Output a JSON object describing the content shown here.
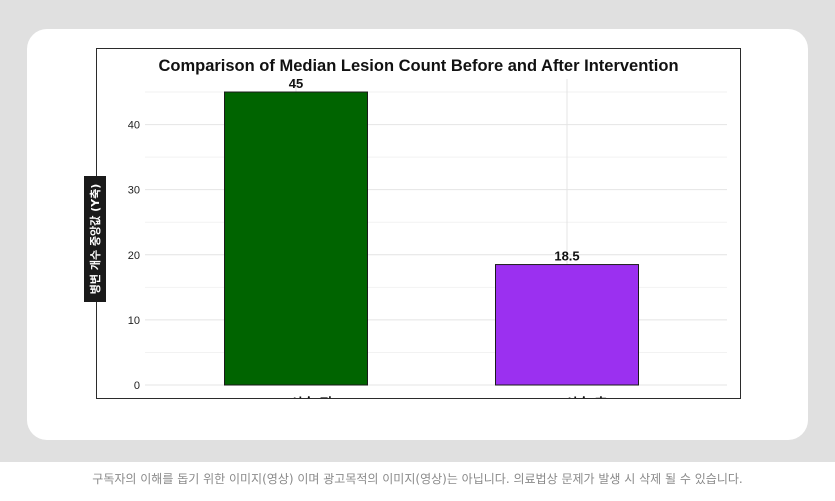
{
  "chart_data": {
    "type": "bar",
    "title": "Comparison of Median Lesion Count Before and After Intervention",
    "categories": [
      "Pre (시술 전)",
      "Post (시술 후)"
    ],
    "values": [
      45,
      18.5
    ],
    "value_labels": [
      "45",
      "18.5"
    ],
    "colors": [
      "#006400",
      "#9b30f0"
    ],
    "ylabel": "병변 개수 중앙값 (Y축)",
    "xlabel": "",
    "ylim": [
      0,
      47
    ],
    "yticks": [
      0,
      10,
      20,
      30,
      40
    ],
    "grid": true
  },
  "footer": {
    "disclaimer": "구독자의 이해를 돕기 위한 이미지(영상) 이며 광고목적의 이미지(영상)는 아닙니다. 의료법상 문제가 발생 시 삭제 될 수 있습니다."
  }
}
